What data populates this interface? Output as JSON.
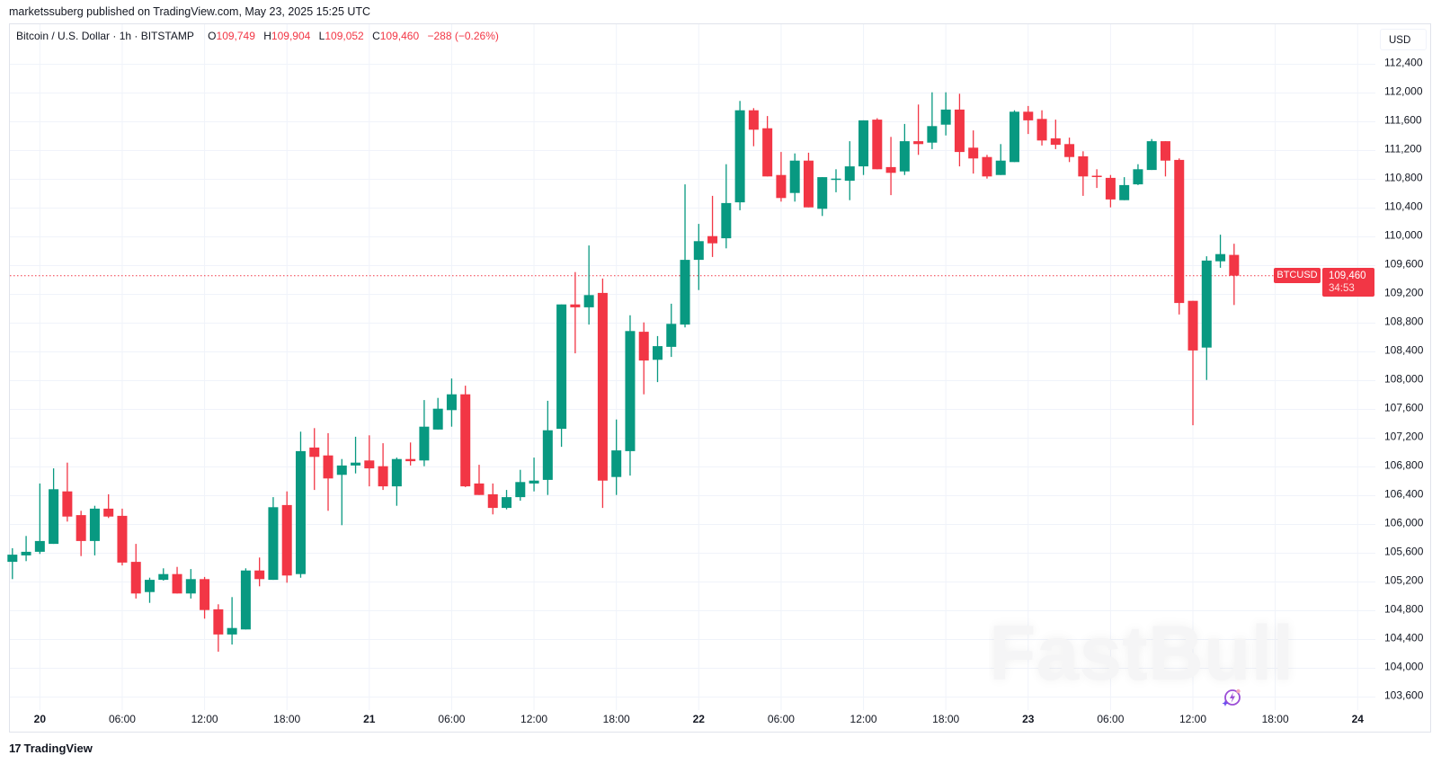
{
  "header": {
    "published": "marketssuberg published on TradingView.com, May 23, 2025 15:25 UTC"
  },
  "legend": {
    "symbol": "Bitcoin / U.S. Dollar · 1h · BITSTAMP",
    "o_label": "O",
    "o": "109,749",
    "h_label": "H",
    "h": "109,904",
    "l_label": "L",
    "l": "109,052",
    "c_label": "C",
    "c": "109,460",
    "change": "−288 (−0.26%)"
  },
  "price_axis": {
    "currency": "USD",
    "ticks": [
      "112,400",
      "112,000",
      "111,600",
      "111,200",
      "110,800",
      "110,400",
      "110,000",
      "109,600",
      "109,200",
      "108,800",
      "108,400",
      "108,000",
      "107,600",
      "107,200",
      "106,800",
      "106,400",
      "106,000",
      "105,600",
      "105,200",
      "104,800",
      "104,400",
      "104,000",
      "103,600"
    ]
  },
  "time_axis": {
    "ticks": [
      {
        "label": "20",
        "bold": true
      },
      {
        "label": "06:00"
      },
      {
        "label": "12:00"
      },
      {
        "label": "18:00"
      },
      {
        "label": "21",
        "bold": true
      },
      {
        "label": "06:00"
      },
      {
        "label": "12:00"
      },
      {
        "label": "18:00"
      },
      {
        "label": "22",
        "bold": true
      },
      {
        "label": "06:00"
      },
      {
        "label": "12:00"
      },
      {
        "label": "18:00"
      },
      {
        "label": "23",
        "bold": true
      },
      {
        "label": "06:00"
      },
      {
        "label": "12:00"
      },
      {
        "label": "18:00"
      },
      {
        "label": "24",
        "bold": true
      }
    ]
  },
  "last_price": {
    "symbol": "BTCUSD",
    "price": "109,460",
    "countdown": "34:53"
  },
  "watermark": "FastBull",
  "footer": {
    "brand": "TradingView",
    "logo": "17"
  },
  "colors": {
    "up": "#089981",
    "down": "#f23645",
    "grid": "#f0f3fa"
  },
  "chart_data": {
    "type": "candlestick",
    "title": "Bitcoin / U.S. Dollar · 1h · BITSTAMP",
    "ylabel": "USD",
    "ylim": [
      103600,
      112400
    ],
    "grid": true,
    "interval": "1h",
    "candles": [
      {
        "t": "2025-05-19 22:00",
        "o": 105480,
        "h": 105670,
        "l": 105240,
        "c": 105580
      },
      {
        "t": "2025-05-19 23:00",
        "o": 105570,
        "h": 105840,
        "l": 105490,
        "c": 105620
      },
      {
        "t": "2025-05-20 00:00",
        "o": 105620,
        "h": 106570,
        "l": 105590,
        "c": 105770
      },
      {
        "t": "2025-05-20 01:00",
        "o": 105730,
        "h": 106780,
        "l": 105730,
        "c": 106490
      },
      {
        "t": "2025-05-20 02:00",
        "o": 106460,
        "h": 106860,
        "l": 106040,
        "c": 106110
      },
      {
        "t": "2025-05-20 03:00",
        "o": 106130,
        "h": 106190,
        "l": 105560,
        "c": 105770
      },
      {
        "t": "2025-05-20 04:00",
        "o": 105770,
        "h": 106260,
        "l": 105570,
        "c": 106220
      },
      {
        "t": "2025-05-20 05:00",
        "o": 106220,
        "h": 106420,
        "l": 106090,
        "c": 106110
      },
      {
        "t": "2025-05-20 06:00",
        "o": 106120,
        "h": 106220,
        "l": 105430,
        "c": 105470
      },
      {
        "t": "2025-05-20 07:00",
        "o": 105480,
        "h": 105730,
        "l": 104970,
        "c": 105040
      },
      {
        "t": "2025-05-20 08:00",
        "o": 105060,
        "h": 105260,
        "l": 104910,
        "c": 105230
      },
      {
        "t": "2025-05-20 09:00",
        "o": 105230,
        "h": 105390,
        "l": 105220,
        "c": 105310
      },
      {
        "t": "2025-05-20 10:00",
        "o": 105310,
        "h": 105410,
        "l": 105040,
        "c": 105040
      },
      {
        "t": "2025-05-20 11:00",
        "o": 105040,
        "h": 105380,
        "l": 104970,
        "c": 105240
      },
      {
        "t": "2025-05-20 12:00",
        "o": 105240,
        "h": 105270,
        "l": 104690,
        "c": 104810
      },
      {
        "t": "2025-05-20 13:00",
        "o": 104820,
        "h": 104890,
        "l": 104230,
        "c": 104470
      },
      {
        "t": "2025-05-20 14:00",
        "o": 104470,
        "h": 104990,
        "l": 104330,
        "c": 104560
      },
      {
        "t": "2025-05-20 15:00",
        "o": 104540,
        "h": 105390,
        "l": 104540,
        "c": 105360
      },
      {
        "t": "2025-05-20 16:00",
        "o": 105360,
        "h": 105540,
        "l": 105140,
        "c": 105240
      },
      {
        "t": "2025-05-20 17:00",
        "o": 105230,
        "h": 106380,
        "l": 105230,
        "c": 106240
      },
      {
        "t": "2025-05-20 18:00",
        "o": 106270,
        "h": 106460,
        "l": 105190,
        "c": 105290
      },
      {
        "t": "2025-05-20 19:00",
        "o": 105310,
        "h": 107290,
        "l": 105260,
        "c": 107020
      },
      {
        "t": "2025-05-20 20:00",
        "o": 107070,
        "h": 107340,
        "l": 106480,
        "c": 106940
      },
      {
        "t": "2025-05-20 21:00",
        "o": 106960,
        "h": 107270,
        "l": 106190,
        "c": 106640
      },
      {
        "t": "2025-05-20 22:00",
        "o": 106690,
        "h": 106910,
        "l": 105990,
        "c": 106820
      },
      {
        "t": "2025-05-20 23:00",
        "o": 106820,
        "h": 107220,
        "l": 106710,
        "c": 106860
      },
      {
        "t": "2025-05-21 00:00",
        "o": 106890,
        "h": 107240,
        "l": 106530,
        "c": 106780
      },
      {
        "t": "2025-05-21 01:00",
        "o": 106810,
        "h": 107130,
        "l": 106480,
        "c": 106530
      },
      {
        "t": "2025-05-21 02:00",
        "o": 106530,
        "h": 106930,
        "l": 106260,
        "c": 106910
      },
      {
        "t": "2025-05-21 03:00",
        "o": 106910,
        "h": 107140,
        "l": 106820,
        "c": 106880
      },
      {
        "t": "2025-05-21 04:00",
        "o": 106890,
        "h": 107730,
        "l": 106810,
        "c": 107360
      },
      {
        "t": "2025-05-21 05:00",
        "o": 107320,
        "h": 107760,
        "l": 107320,
        "c": 107610
      },
      {
        "t": "2025-05-21 06:00",
        "o": 107590,
        "h": 108030,
        "l": 107360,
        "c": 107810
      },
      {
        "t": "2025-05-21 07:00",
        "o": 107810,
        "h": 107930,
        "l": 106520,
        "c": 106530
      },
      {
        "t": "2025-05-21 08:00",
        "o": 106570,
        "h": 106830,
        "l": 106410,
        "c": 106410
      },
      {
        "t": "2025-05-21 09:00",
        "o": 106420,
        "h": 106570,
        "l": 106140,
        "c": 106230
      },
      {
        "t": "2025-05-21 10:00",
        "o": 106230,
        "h": 106480,
        "l": 106210,
        "c": 106380
      },
      {
        "t": "2025-05-21 11:00",
        "o": 106380,
        "h": 106760,
        "l": 106330,
        "c": 106590
      },
      {
        "t": "2025-05-21 12:00",
        "o": 106570,
        "h": 106930,
        "l": 106460,
        "c": 106610
      },
      {
        "t": "2025-05-21 13:00",
        "o": 106620,
        "h": 107720,
        "l": 106410,
        "c": 107310
      },
      {
        "t": "2025-05-21 14:00",
        "o": 107330,
        "h": 109060,
        "l": 107080,
        "c": 109060
      },
      {
        "t": "2025-05-21 15:00",
        "o": 109060,
        "h": 109510,
        "l": 108380,
        "c": 109020
      },
      {
        "t": "2025-05-21 16:00",
        "o": 109020,
        "h": 109880,
        "l": 108780,
        "c": 109190
      },
      {
        "t": "2025-05-21 17:00",
        "o": 109220,
        "h": 109420,
        "l": 106230,
        "c": 106610
      },
      {
        "t": "2025-05-21 18:00",
        "o": 106660,
        "h": 107460,
        "l": 106410,
        "c": 107030
      },
      {
        "t": "2025-05-21 19:00",
        "o": 107020,
        "h": 108910,
        "l": 106680,
        "c": 108690
      },
      {
        "t": "2025-05-21 20:00",
        "o": 108680,
        "h": 108810,
        "l": 107810,
        "c": 108280
      },
      {
        "t": "2025-05-21 21:00",
        "o": 108290,
        "h": 108620,
        "l": 107980,
        "c": 108480
      },
      {
        "t": "2025-05-21 22:00",
        "o": 108470,
        "h": 109070,
        "l": 108330,
        "c": 108790
      },
      {
        "t": "2025-05-21 23:00",
        "o": 108780,
        "h": 110730,
        "l": 108740,
        "c": 109680
      },
      {
        "t": "2025-05-22 00:00",
        "o": 109680,
        "h": 110180,
        "l": 109260,
        "c": 109940
      },
      {
        "t": "2025-05-22 01:00",
        "o": 110010,
        "h": 110570,
        "l": 109720,
        "c": 109910
      },
      {
        "t": "2025-05-22 02:00",
        "o": 109980,
        "h": 111010,
        "l": 109840,
        "c": 110470
      },
      {
        "t": "2025-05-22 03:00",
        "o": 110480,
        "h": 111890,
        "l": 110370,
        "c": 111760
      },
      {
        "t": "2025-05-22 04:00",
        "o": 111760,
        "h": 111790,
        "l": 111260,
        "c": 111490
      },
      {
        "t": "2025-05-22 05:00",
        "o": 111510,
        "h": 111680,
        "l": 110840,
        "c": 110840
      },
      {
        "t": "2025-05-22 06:00",
        "o": 110860,
        "h": 111180,
        "l": 110490,
        "c": 110540
      },
      {
        "t": "2025-05-22 07:00",
        "o": 110610,
        "h": 111160,
        "l": 110490,
        "c": 111060
      },
      {
        "t": "2025-05-22 08:00",
        "o": 111060,
        "h": 111170,
        "l": 110410,
        "c": 110410
      },
      {
        "t": "2025-05-22 09:00",
        "o": 110390,
        "h": 110830,
        "l": 110290,
        "c": 110830
      },
      {
        "t": "2025-05-22 10:00",
        "o": 110800,
        "h": 110940,
        "l": 110620,
        "c": 110810
      },
      {
        "t": "2025-05-22 11:00",
        "o": 110780,
        "h": 111330,
        "l": 110510,
        "c": 110980
      },
      {
        "t": "2025-05-22 12:00",
        "o": 110980,
        "h": 111620,
        "l": 110860,
        "c": 111620
      },
      {
        "t": "2025-05-22 13:00",
        "o": 111630,
        "h": 111650,
        "l": 110940,
        "c": 110940
      },
      {
        "t": "2025-05-22 14:00",
        "o": 110970,
        "h": 111390,
        "l": 110580,
        "c": 110890
      },
      {
        "t": "2025-05-22 15:00",
        "o": 110910,
        "h": 111570,
        "l": 110860,
        "c": 111330
      },
      {
        "t": "2025-05-22 16:00",
        "o": 111330,
        "h": 111840,
        "l": 111140,
        "c": 111290
      },
      {
        "t": "2025-05-22 17:00",
        "o": 111310,
        "h": 112010,
        "l": 111220,
        "c": 111540
      },
      {
        "t": "2025-05-22 18:00",
        "o": 111560,
        "h": 112010,
        "l": 111410,
        "c": 111770
      },
      {
        "t": "2025-05-22 19:00",
        "o": 111770,
        "h": 111990,
        "l": 110980,
        "c": 111180
      },
      {
        "t": "2025-05-22 20:00",
        "o": 111240,
        "h": 111480,
        "l": 110880,
        "c": 111090
      },
      {
        "t": "2025-05-22 21:00",
        "o": 111110,
        "h": 111140,
        "l": 110810,
        "c": 110840
      },
      {
        "t": "2025-05-22 22:00",
        "o": 110860,
        "h": 111290,
        "l": 110860,
        "c": 111060
      },
      {
        "t": "2025-05-22 23:00",
        "o": 111040,
        "h": 111760,
        "l": 111040,
        "c": 111740
      },
      {
        "t": "2025-05-23 00:00",
        "o": 111740,
        "h": 111820,
        "l": 111430,
        "c": 111620
      },
      {
        "t": "2025-05-23 01:00",
        "o": 111640,
        "h": 111760,
        "l": 111270,
        "c": 111340
      },
      {
        "t": "2025-05-23 02:00",
        "o": 111370,
        "h": 111630,
        "l": 111220,
        "c": 111280
      },
      {
        "t": "2025-05-23 03:00",
        "o": 111290,
        "h": 111380,
        "l": 111040,
        "c": 111110
      },
      {
        "t": "2025-05-23 04:00",
        "o": 111120,
        "h": 111190,
        "l": 110570,
        "c": 110840
      },
      {
        "t": "2025-05-23 05:00",
        "o": 110850,
        "h": 110940,
        "l": 110680,
        "c": 110840
      },
      {
        "t": "2025-05-23 06:00",
        "o": 110820,
        "h": 110860,
        "l": 110410,
        "c": 110520
      },
      {
        "t": "2025-05-23 07:00",
        "o": 110510,
        "h": 110830,
        "l": 110510,
        "c": 110720
      },
      {
        "t": "2025-05-23 08:00",
        "o": 110730,
        "h": 111010,
        "l": 110720,
        "c": 110940
      },
      {
        "t": "2025-05-23 09:00",
        "o": 110930,
        "h": 111360,
        "l": 110930,
        "c": 111330
      },
      {
        "t": "2025-05-23 10:00",
        "o": 111330,
        "h": 111330,
        "l": 110840,
        "c": 111060
      },
      {
        "t": "2025-05-23 11:00",
        "o": 111070,
        "h": 111090,
        "l": 108920,
        "c": 109080
      },
      {
        "t": "2025-05-23 12:00",
        "o": 109110,
        "h": 109110,
        "l": 107380,
        "c": 108420
      },
      {
        "t": "2025-05-23 13:00",
        "o": 108460,
        "h": 109730,
        "l": 108010,
        "c": 109670
      },
      {
        "t": "2025-05-23 14:00",
        "o": 109660,
        "h": 110030,
        "l": 109570,
        "c": 109760
      },
      {
        "t": "2025-05-23 15:00",
        "o": 109749,
        "h": 109904,
        "l": 109052,
        "c": 109460
      }
    ]
  }
}
